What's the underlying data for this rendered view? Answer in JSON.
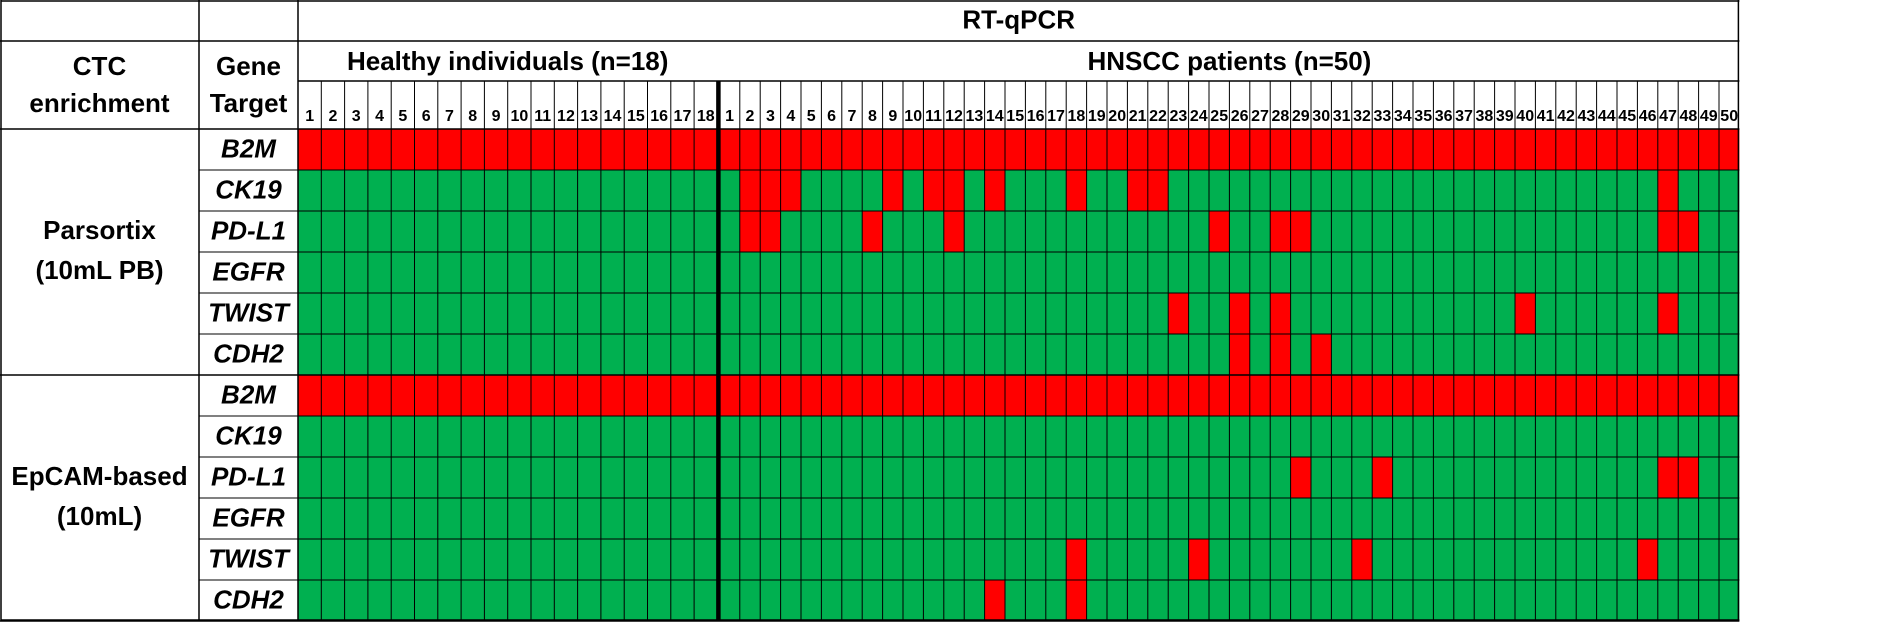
{
  "chart_data": {
    "type": "heatmap",
    "title": "RT-qPCR",
    "row_group_header": [
      "CTC",
      "enrichment"
    ],
    "gene_header": [
      "Gene",
      "Target"
    ],
    "healthy_header": "Healthy individuals (n=18)",
    "patients_header": "HNSCC patients (n=50)",
    "healthy_count": 18,
    "patient_count": 50,
    "colors": {
      "positive": "#ff0000",
      "negative": "#00b050",
      "line": "#000000"
    },
    "groups": [
      {
        "label_lines": [
          "Parsortix",
          "(10mL PB)"
        ],
        "rows": [
          {
            "gene": "B2M",
            "healthy_positive": [
              1,
              2,
              3,
              4,
              5,
              6,
              7,
              8,
              9,
              10,
              11,
              12,
              13,
              14,
              15,
              16,
              17,
              18
            ],
            "patients_positive": [
              1,
              2,
              3,
              4,
              5,
              6,
              7,
              8,
              9,
              10,
              11,
              12,
              13,
              14,
              15,
              16,
              17,
              18,
              19,
              20,
              21,
              22,
              23,
              24,
              25,
              26,
              27,
              28,
              29,
              30,
              31,
              32,
              33,
              34,
              35,
              36,
              37,
              38,
              39,
              40,
              41,
              42,
              43,
              44,
              45,
              46,
              47,
              48,
              49,
              50
            ]
          },
          {
            "gene": "CK19",
            "healthy_positive": [],
            "patients_positive": [
              2,
              3,
              4,
              9,
              11,
              12,
              14,
              18,
              21,
              22,
              47
            ]
          },
          {
            "gene": "PD-L1",
            "healthy_positive": [],
            "patients_positive": [
              2,
              3,
              8,
              12,
              25,
              28,
              29,
              47,
              48
            ]
          },
          {
            "gene": "EGFR",
            "healthy_positive": [],
            "patients_positive": []
          },
          {
            "gene": "TWIST",
            "healthy_positive": [],
            "patients_positive": [
              23,
              26,
              28,
              40,
              47
            ]
          },
          {
            "gene": "CDH2",
            "healthy_positive": [],
            "patients_positive": [
              26,
              28,
              30
            ]
          }
        ]
      },
      {
        "label_lines": [
          "EpCAM-based",
          "(10mL)"
        ],
        "rows": [
          {
            "gene": "B2M",
            "healthy_positive": [
              1,
              2,
              3,
              4,
              5,
              6,
              7,
              8,
              9,
              10,
              11,
              12,
              13,
              14,
              15,
              16,
              17,
              18
            ],
            "patients_positive": [
              1,
              2,
              3,
              4,
              5,
              6,
              7,
              8,
              9,
              10,
              11,
              12,
              13,
              14,
              15,
              16,
              17,
              18,
              19,
              20,
              21,
              22,
              23,
              24,
              25,
              26,
              27,
              28,
              29,
              30,
              31,
              32,
              33,
              34,
              35,
              36,
              37,
              38,
              39,
              40,
              41,
              42,
              43,
              44,
              45,
              46,
              47,
              48,
              49,
              50
            ]
          },
          {
            "gene": "CK19",
            "healthy_positive": [],
            "patients_positive": []
          },
          {
            "gene": "PD-L1",
            "healthy_positive": [],
            "patients_positive": [
              29,
              33,
              47,
              48
            ]
          },
          {
            "gene": "EGFR",
            "healthy_positive": [],
            "patients_positive": []
          },
          {
            "gene": "TWIST",
            "healthy_positive": [],
            "patients_positive": [
              18,
              24,
              32,
              46
            ]
          },
          {
            "gene": "CDH2",
            "healthy_positive": [],
            "patients_positive": [
              14,
              18
            ]
          }
        ]
      }
    ]
  }
}
